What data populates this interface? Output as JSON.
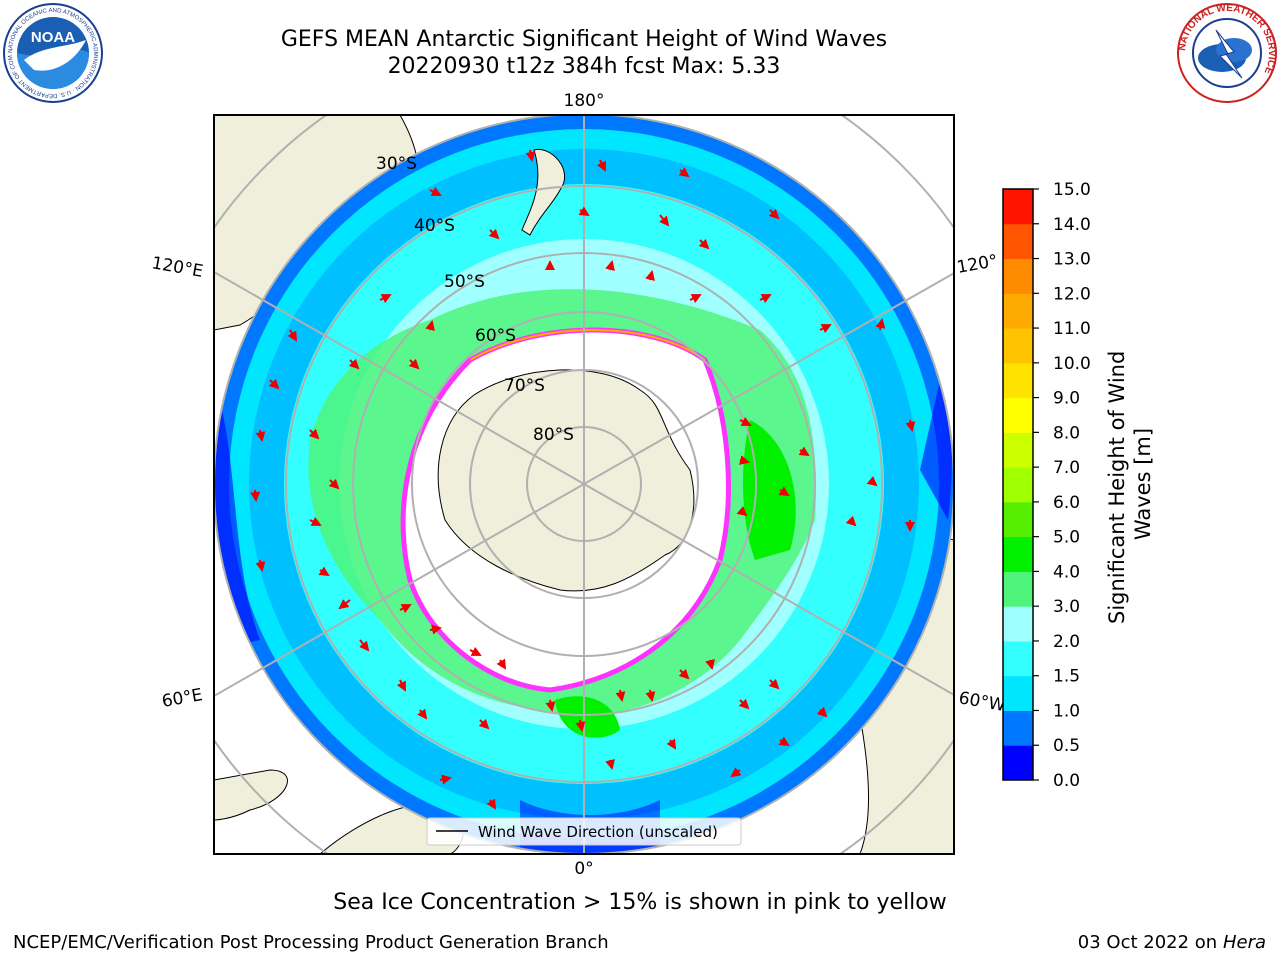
{
  "header": {
    "title_line1": "GEFS MEAN Antarctic Significant Height of Wind Waves",
    "title_line2": "20220930 t12z 384h fcst   Max: 5.33"
  },
  "logos": {
    "left": "NOAA",
    "left_ring": "NATIONAL OCEANIC AND ATMOSPHERIC ADMINISTRATION · U.S. DEPARTMENT OF COMMERCE",
    "right_ring": "NATIONAL WEATHER SERVICE"
  },
  "map": {
    "projection": "south-polar-stereographic",
    "longitude_labels": {
      "top": "180°",
      "bottom": "0°",
      "left_upper": "120°E",
      "left_lower": "60°E",
      "right_upper": "120°",
      "right_lower": "60°W"
    },
    "latitude_labels": [
      "30°S",
      "40°S",
      "50°S",
      "60°S",
      "70°S",
      "80°S"
    ],
    "legend_label": "Wind Wave Direction (unscaled)",
    "colors": {
      "land": "#efefdb",
      "ice_edge": "#ff33ff",
      "arrow": "#ee0000"
    }
  },
  "colorbar": {
    "label": "Significant Height of Wind Waves [m]",
    "ticks": [
      "0.0",
      "0.5",
      "1.0",
      "1.5",
      "2.0",
      "3.0",
      "4.0",
      "5.0",
      "6.0",
      "7.0",
      "8.0",
      "9.0",
      "10.0",
      "11.0",
      "12.0",
      "13.0",
      "14.0",
      "15.0"
    ],
    "colors": [
      "#0000ff",
      "#0077ff",
      "#00e6ff",
      "#33ffff",
      "#a0ffff",
      "#4ff57a",
      "#00f000",
      "#55ee00",
      "#a0ff00",
      "#ccff00",
      "#ffff00",
      "#ffe200",
      "#ffc400",
      "#ffaa00",
      "#ff8c00",
      "#ff5500",
      "#ff1400"
    ]
  },
  "chart_data": {
    "type": "heatmap",
    "field": "Significant Height of Wind Waves",
    "units": "m",
    "forecast": "20220930 t12z 384h fcst",
    "max": 5.33,
    "levels": [
      0.0,
      0.5,
      1.0,
      1.5,
      2.0,
      3.0,
      4.0,
      5.0,
      6.0,
      7.0,
      8.0,
      9.0,
      10.0,
      11.0,
      12.0,
      13.0,
      14.0,
      15.0
    ]
  },
  "footer": {
    "note": "Sea Ice Concentration > 15% is shown in pink to yellow",
    "left": "NCEP/EMC/Verification Post Processing Product Generation Branch",
    "right_date": "03 Oct 2022 on",
    "right_host": "Hera"
  }
}
